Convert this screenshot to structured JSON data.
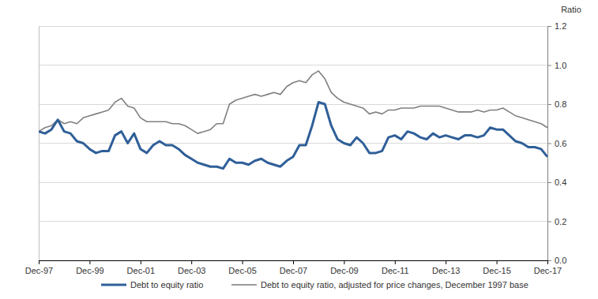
{
  "chart_data": {
    "type": "line",
    "y_label": "Ratio",
    "categories": [
      "Dec-97",
      null,
      null,
      null,
      null,
      null,
      null,
      null,
      "Dec-99",
      null,
      null,
      null,
      null,
      null,
      null,
      null,
      "Dec-01",
      null,
      null,
      null,
      null,
      null,
      null,
      null,
      "Dec-03",
      null,
      null,
      null,
      null,
      null,
      null,
      null,
      "Dec-05",
      null,
      null,
      null,
      null,
      null,
      null,
      null,
      "Dec-07",
      null,
      null,
      null,
      null,
      null,
      null,
      null,
      "Dec-09",
      null,
      null,
      null,
      null,
      null,
      null,
      null,
      "Dec-11",
      null,
      null,
      null,
      null,
      null,
      null,
      null,
      "Dec-13",
      null,
      null,
      null,
      null,
      null,
      null,
      null,
      "Dec-15",
      null,
      null,
      null,
      null,
      null,
      null,
      null,
      "Dec-17"
    ],
    "series": [
      {
        "name": "Debt to equity ratio",
        "color": "#2f5f98",
        "values": [
          0.66,
          0.65,
          0.67,
          0.72,
          0.66,
          0.65,
          0.61,
          0.6,
          0.57,
          0.55,
          0.56,
          0.56,
          0.64,
          0.66,
          0.6,
          0.65,
          0.57,
          0.55,
          0.59,
          0.61,
          0.59,
          0.59,
          0.57,
          0.54,
          0.52,
          0.5,
          0.49,
          0.48,
          0.48,
          0.47,
          0.52,
          0.5,
          0.5,
          0.49,
          0.51,
          0.52,
          0.5,
          0.49,
          0.48,
          0.51,
          0.53,
          0.59,
          0.59,
          0.69,
          0.81,
          0.8,
          0.69,
          0.62,
          0.6,
          0.59,
          0.63,
          0.6,
          0.55,
          0.55,
          0.56,
          0.63,
          0.64,
          0.62,
          0.66,
          0.65,
          0.63,
          0.62,
          0.65,
          0.63,
          0.64,
          0.63,
          0.62,
          0.64,
          0.64,
          0.63,
          0.64,
          0.68,
          0.67,
          0.67,
          0.64,
          0.61,
          0.6,
          0.58,
          0.58,
          0.57,
          0.53
        ]
      },
      {
        "name": "Debt to equity ratio, adjusted for price changes, December 1997 base",
        "color": "#808080",
        "values": [
          0.66,
          0.68,
          0.69,
          0.72,
          0.7,
          0.71,
          0.7,
          0.73,
          0.74,
          0.75,
          0.76,
          0.77,
          0.81,
          0.83,
          0.79,
          0.78,
          0.73,
          0.71,
          0.71,
          0.71,
          0.71,
          0.7,
          0.7,
          0.69,
          0.67,
          0.65,
          0.66,
          0.67,
          0.7,
          0.7,
          0.8,
          0.82,
          0.83,
          0.84,
          0.85,
          0.84,
          0.85,
          0.86,
          0.85,
          0.89,
          0.91,
          0.92,
          0.91,
          0.95,
          0.97,
          0.93,
          0.86,
          0.83,
          0.81,
          0.8,
          0.79,
          0.78,
          0.75,
          0.76,
          0.75,
          0.77,
          0.77,
          0.78,
          0.78,
          0.78,
          0.79,
          0.79,
          0.79,
          0.79,
          0.78,
          0.77,
          0.76,
          0.76,
          0.76,
          0.77,
          0.76,
          0.77,
          0.77,
          0.78,
          0.76,
          0.74,
          0.73,
          0.72,
          0.71,
          0.7,
          0.68
        ]
      }
    ],
    "ylim": [
      0,
      1.2
    ],
    "yticks": [
      {
        "value": 0,
        "label": "0.0"
      },
      0.2,
      0.4,
      0.6,
      0.8,
      {
        "value": 1,
        "label": "1.0"
      },
      1.2
    ],
    "grid": true,
    "legend": "bottom"
  }
}
